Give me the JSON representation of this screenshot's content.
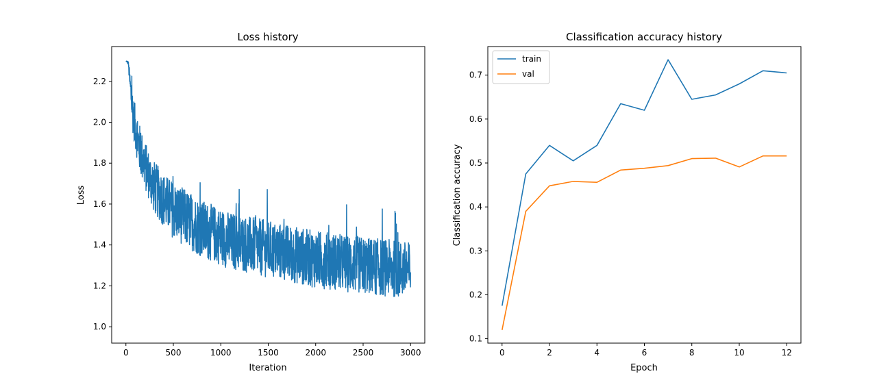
{
  "chart_data": [
    {
      "type": "line",
      "title": "Loss history",
      "xlabel": "Iteration",
      "ylabel": "Loss",
      "xlim": [
        -150,
        3150
      ],
      "ylim": [
        0.92,
        2.37
      ],
      "xticks": [
        0,
        500,
        1000,
        1500,
        2000,
        2500,
        3000
      ],
      "yticks": [
        1.0,
        1.2,
        1.4,
        1.6,
        1.8,
        2.0,
        2.2
      ],
      "xtick_labels": [
        "0",
        "500",
        "1000",
        "1500",
        "2000",
        "2500",
        "3000"
      ],
      "ytick_labels": [
        "1.0",
        "1.2",
        "1.4",
        "1.6",
        "1.8",
        "2.0",
        "2.2"
      ],
      "grid": false,
      "legend": "none",
      "color": "#1f77b4",
      "series": [
        {
          "x": [
            0,
            25,
            50,
            75,
            100,
            150,
            200,
            250,
            300,
            400,
            500,
            600,
            700,
            800,
            900,
            1000,
            1100,
            1200,
            1300,
            1400,
            1500,
            1600,
            1700,
            1800,
            1900,
            2000,
            2100,
            2200,
            2300,
            2400,
            2500,
            2600,
            2700,
            2800,
            2900,
            3000
          ],
          "values": [
            2.3,
            2.29,
            2.15,
            2.04,
            1.97,
            1.86,
            1.79,
            1.73,
            1.68,
            1.62,
            1.57,
            1.54,
            1.51,
            1.48,
            1.46,
            1.44,
            1.42,
            1.41,
            1.4,
            1.39,
            1.38,
            1.37,
            1.36,
            1.35,
            1.34,
            1.33,
            1.325,
            1.32,
            1.31,
            1.305,
            1.3,
            1.295,
            1.29,
            1.285,
            1.28,
            1.275
          ],
          "band": [
            0.0,
            0.01,
            0.08,
            0.1,
            0.11,
            0.12,
            0.12,
            0.12,
            0.13,
            0.13,
            0.14,
            0.14,
            0.14,
            0.14,
            0.14,
            0.14,
            0.14,
            0.14,
            0.14,
            0.14,
            0.14,
            0.14,
            0.14,
            0.14,
            0.14,
            0.14,
            0.14,
            0.14,
            0.14,
            0.14,
            0.14,
            0.14,
            0.14,
            0.14,
            0.14,
            0.14
          ]
        }
      ]
    },
    {
      "type": "line",
      "title": "Classification accuracy history",
      "xlabel": "Epoch",
      "ylabel": "Classification accuracy",
      "xlim": [
        -0.6,
        12.6
      ],
      "ylim": [
        0.09,
        0.765
      ],
      "xticks": [
        0,
        2,
        4,
        6,
        8,
        10,
        12
      ],
      "yticks": [
        0.1,
        0.2,
        0.3,
        0.4,
        0.5,
        0.6,
        0.7
      ],
      "xtick_labels": [
        "0",
        "2",
        "4",
        "6",
        "8",
        "10",
        "12"
      ],
      "ytick_labels": [
        "0.1",
        "0.2",
        "0.3",
        "0.4",
        "0.5",
        "0.6",
        "0.7"
      ],
      "grid": false,
      "legend": "top-left",
      "x": [
        0,
        1,
        2,
        3,
        4,
        5,
        6,
        7,
        8,
        9,
        10,
        11,
        12
      ],
      "series": [
        {
          "name": "train",
          "color": "#1f77b4",
          "values": [
            0.175,
            0.475,
            0.54,
            0.505,
            0.54,
            0.635,
            0.62,
            0.735,
            0.645,
            0.655,
            0.68,
            0.71,
            0.705
          ]
        },
        {
          "name": "val",
          "color": "#ff7f0e",
          "values": [
            0.12,
            0.39,
            0.448,
            0.458,
            0.456,
            0.484,
            0.488,
            0.494,
            0.51,
            0.511,
            0.491,
            0.516,
            0.516
          ]
        }
      ]
    }
  ]
}
